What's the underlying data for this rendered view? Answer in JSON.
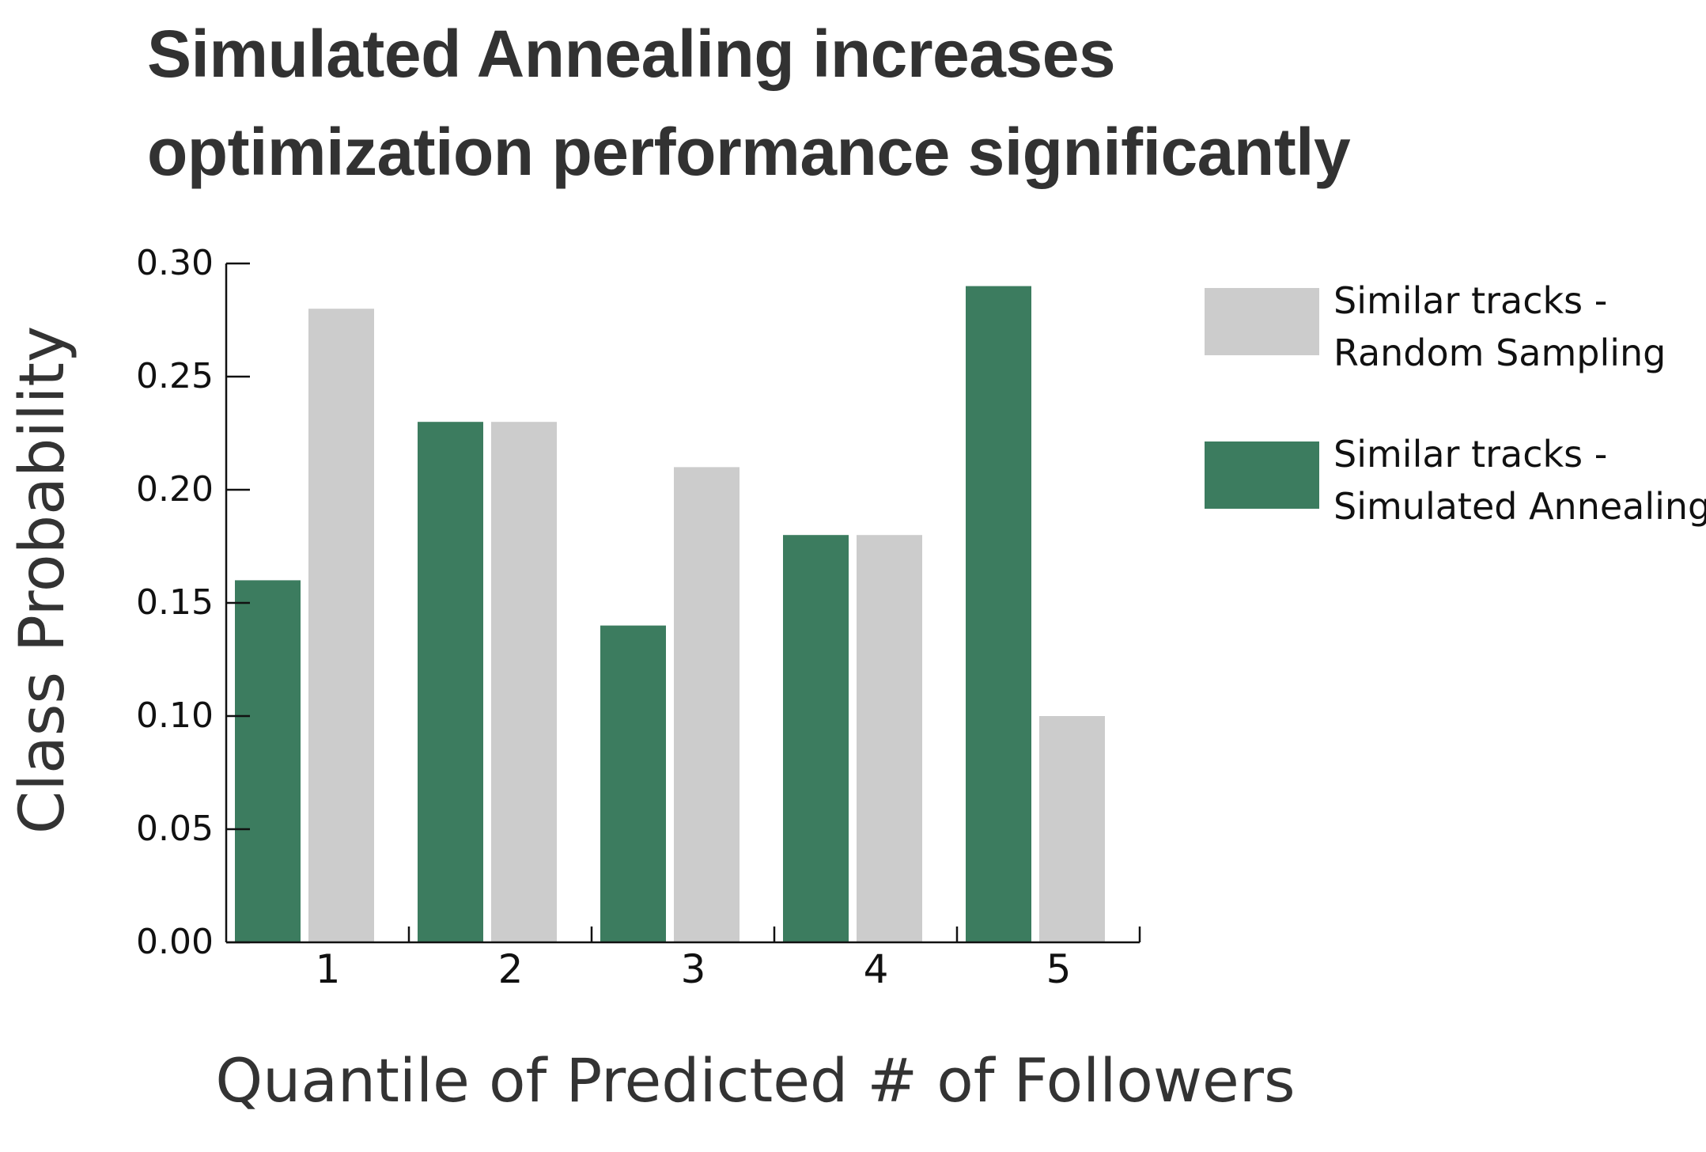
{
  "chart_data": {
    "type": "bar",
    "title_lines": [
      "Simulated Annealing increases",
      "optimization performance significantly"
    ],
    "xlabel": "Quantile of Predicted # of Followers",
    "ylabel": "Class Probability",
    "categories": [
      "1",
      "2",
      "3",
      "4",
      "5"
    ],
    "ylim": [
      0,
      0.3
    ],
    "yticks": [
      "0.00",
      "0.05",
      "0.10",
      "0.15",
      "0.20",
      "0.25",
      "0.30"
    ],
    "grid": false,
    "legend_position": "right",
    "series": [
      {
        "name": "Similar tracks - Simulated Annealing",
        "legend_lines": [
          "Similar tracks -",
          "Simulated Annealing"
        ],
        "color": "#3c7c5f",
        "values": [
          0.16,
          0.23,
          0.14,
          0.18,
          0.29
        ]
      },
      {
        "name": "Similar tracks - Random Sampling",
        "legend_lines": [
          "Similar tracks -",
          "Random Sampling"
        ],
        "color": "#cccccc",
        "values": [
          0.28,
          0.23,
          0.21,
          0.18,
          0.1
        ]
      }
    ]
  }
}
